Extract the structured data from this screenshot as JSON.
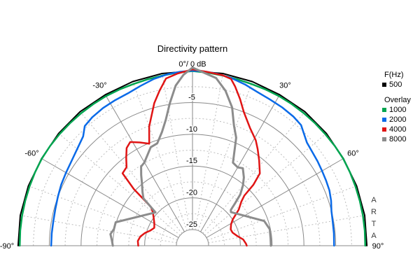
{
  "title": "Directivity pattern",
  "legend": {
    "primary_header": "F(Hz)",
    "primary_items": [
      {
        "label": "500",
        "color": "#000000"
      }
    ],
    "overlay_header": "Overlay",
    "overlay_items": [
      {
        "label": "1000",
        "color": "#00a550"
      },
      {
        "label": "2000",
        "color": "#0a6ae8"
      },
      {
        "label": "4000",
        "color": "#e01414"
      },
      {
        "label": "8000",
        "color": "#8c8c8c"
      }
    ]
  },
  "watermark": {
    "letters": [
      "A",
      "R",
      "T",
      "A"
    ]
  },
  "chart_data": {
    "type": "line",
    "subtype": "polar-directivity-half",
    "title": "Directivity pattern",
    "angle_axis": {
      "min": -90,
      "max": 90,
      "solid_spokes": [
        -60,
        -30,
        0,
        30,
        60
      ],
      "dashed_spokes": [
        -80,
        -70,
        -50,
        -40,
        -20,
        -10,
        10,
        20,
        40,
        50,
        70,
        80
      ],
      "labels": [
        {
          "angle": 0,
          "text": "0°/ 0 dB"
        },
        {
          "angle": -30,
          "text": "-30°"
        },
        {
          "angle": 30,
          "text": "30°"
        },
        {
          "angle": -60,
          "text": "-60°"
        },
        {
          "angle": 60,
          "text": "60°"
        },
        {
          "angle": -90,
          "text": "-90°"
        },
        {
          "angle": 90,
          "text": "90°"
        }
      ]
    },
    "radial_axis": {
      "unit": "dB",
      "max_db": 0,
      "min_db": -25,
      "solid_step_db": 5,
      "dashed_step_db": 2.5,
      "ticks": [
        {
          "db": -5,
          "text": "-5"
        },
        {
          "db": -10,
          "text": "-10"
        },
        {
          "db": -15,
          "text": "-15"
        },
        {
          "db": -20,
          "text": "-20"
        },
        {
          "db": -25,
          "text": "-25"
        }
      ]
    },
    "grid": {
      "solid_color": "#8a8a8a",
      "dashed_color": "#bdbdbd"
    },
    "series": [
      {
        "name": "500",
        "color": "#000000",
        "width": 2,
        "points": [
          [
            -90,
            -0.1
          ],
          [
            -80,
            -0.02
          ],
          [
            -70,
            -0.05
          ],
          [
            -60,
            -0.12
          ],
          [
            -50,
            -0.05
          ],
          [
            -40,
            -0.02
          ],
          [
            -30,
            -0.1
          ],
          [
            -20,
            -0.05
          ],
          [
            -10,
            -0.02
          ],
          [
            0,
            -0.05
          ],
          [
            10,
            -0.02
          ],
          [
            20,
            -0.05
          ],
          [
            30,
            -0.1
          ],
          [
            40,
            -0.02
          ],
          [
            50,
            -0.05
          ],
          [
            60,
            -0.12
          ],
          [
            70,
            -0.05
          ],
          [
            80,
            -0.02
          ],
          [
            90,
            -0.1
          ]
        ]
      },
      {
        "name": "1000",
        "color": "#00a550",
        "width": 2.5,
        "points": [
          [
            -90,
            -0.35
          ],
          [
            -85,
            -0.33
          ],
          [
            -80,
            -0.3
          ],
          [
            -75,
            -0.28
          ],
          [
            -70,
            -0.25
          ],
          [
            -65,
            -0.2
          ],
          [
            -60,
            -0.15
          ],
          [
            -55,
            -0.18
          ],
          [
            -50,
            -0.22
          ],
          [
            -45,
            -0.28
          ],
          [
            -40,
            -0.3
          ],
          [
            -35,
            -0.33
          ],
          [
            -30,
            -0.35
          ],
          [
            -25,
            -0.4
          ],
          [
            -20,
            -0.45
          ],
          [
            -15,
            -0.42
          ],
          [
            -10,
            -0.35
          ],
          [
            -5,
            -0.2
          ],
          [
            0,
            -0.05
          ],
          [
            5,
            -0.2
          ],
          [
            10,
            -0.35
          ],
          [
            15,
            -0.42
          ],
          [
            20,
            -0.45
          ],
          [
            25,
            -0.4
          ],
          [
            30,
            -0.35
          ],
          [
            35,
            -0.32
          ],
          [
            40,
            -0.3
          ],
          [
            45,
            -0.28
          ],
          [
            50,
            -0.25
          ],
          [
            55,
            -0.2
          ],
          [
            60,
            -0.15
          ],
          [
            65,
            -0.2
          ],
          [
            70,
            -0.25
          ],
          [
            75,
            -0.28
          ],
          [
            80,
            -0.3
          ],
          [
            85,
            -0.33
          ],
          [
            90,
            -0.35
          ]
        ]
      },
      {
        "name": "2000",
        "color": "#0a6ae8",
        "width": 2.5,
        "points": [
          [
            -90,
            -5.3
          ],
          [
            -85,
            -5.3
          ],
          [
            -80,
            -5.3
          ],
          [
            -75,
            -5.2
          ],
          [
            -70,
            -5.0
          ],
          [
            -65,
            -4.75
          ],
          [
            -60,
            -4.55
          ],
          [
            -55,
            -4.3
          ],
          [
            -50,
            -3.85
          ],
          [
            -45,
            -3.2
          ],
          [
            -42,
            -2.2
          ],
          [
            -38,
            -1.9
          ],
          [
            -33,
            -1.7
          ],
          [
            -28,
            -1.6
          ],
          [
            -23,
            -1.5
          ],
          [
            -18,
            -1.1
          ],
          [
            -13,
            -0.6
          ],
          [
            -8,
            -0.25
          ],
          [
            -4,
            -0.1
          ],
          [
            0,
            0
          ],
          [
            4,
            -0.05
          ],
          [
            8,
            -0.2
          ],
          [
            13,
            -0.45
          ],
          [
            18,
            -0.85
          ],
          [
            23,
            -1.3
          ],
          [
            28,
            -1.5
          ],
          [
            33,
            -1.6
          ],
          [
            38,
            -1.75
          ],
          [
            42,
            -2.0
          ],
          [
            45,
            -2.7
          ],
          [
            48,
            -3.3
          ],
          [
            52,
            -3.6
          ],
          [
            56,
            -3.8
          ],
          [
            60,
            -4.0
          ],
          [
            64,
            -4.15
          ],
          [
            68,
            -4.3
          ],
          [
            72,
            -4.6
          ],
          [
            76,
            -5.0
          ],
          [
            80,
            -5.15
          ],
          [
            85,
            -5.2
          ],
          [
            90,
            -5.25
          ]
        ]
      },
      {
        "name": "4000",
        "color": "#e01414",
        "width": 2.5,
        "points": [
          [
            -90,
            -19.0
          ],
          [
            -85,
            -18.9
          ],
          [
            -80,
            -19.2
          ],
          [
            -75,
            -19.8
          ],
          [
            -70,
            -20.5
          ],
          [
            -65,
            -20.9
          ],
          [
            -60,
            -20.6
          ],
          [
            -55,
            -20.1
          ],
          [
            -50,
            -19.4
          ],
          [
            -47,
            -18.6
          ],
          [
            -46,
            -14.7
          ],
          [
            -44,
            -11.7
          ],
          [
            -40,
            -11.4
          ],
          [
            -37,
            -10.2
          ],
          [
            -34,
            -9.0
          ],
          [
            -31,
            -8.5
          ],
          [
            -27,
            -9.3
          ],
          [
            -23,
            -10.1
          ],
          [
            -20,
            -7.6
          ],
          [
            -15,
            -4.3
          ],
          [
            -12,
            -2.6
          ],
          [
            -9,
            -0.9
          ],
          [
            -5,
            -0.35
          ],
          [
            0,
            0.2
          ],
          [
            5,
            -0.1
          ],
          [
            10,
            -0.3
          ],
          [
            13,
            -0.6
          ],
          [
            15,
            -1.6
          ],
          [
            18,
            -3.3
          ],
          [
            21,
            -5.0
          ],
          [
            26,
            -6.9
          ],
          [
            31,
            -8.2
          ],
          [
            34,
            -9.2
          ],
          [
            38,
            -10.5
          ],
          [
            43,
            -12.0
          ],
          [
            45,
            -14.0
          ],
          [
            46,
            -16.2
          ],
          [
            48,
            -17.2
          ],
          [
            52,
            -18.3
          ],
          [
            57,
            -20.0
          ],
          [
            61,
            -20.6
          ],
          [
            67,
            -21.0
          ],
          [
            72,
            -20.9
          ],
          [
            78,
            -20.3
          ],
          [
            83,
            -19.5
          ],
          [
            88,
            -19.1
          ],
          [
            90,
            -19.0
          ]
        ]
      },
      {
        "name": "8000",
        "color": "#8c8c8c",
        "width": 3,
        "points": [
          [
            -90,
            -15.0
          ],
          [
            -86,
            -14.8
          ],
          [
            -82,
            -14.5
          ],
          [
            -78,
            -14.9
          ],
          [
            -73,
            -14.9
          ],
          [
            -48,
            -19.7
          ],
          [
            -46,
            -16.8
          ],
          [
            -43,
            -16.0
          ],
          [
            -39,
            -14.9
          ],
          [
            -36,
            -13.8
          ],
          [
            -33,
            -12.7
          ],
          [
            -30,
            -12.4
          ],
          [
            -26,
            -11.5
          ],
          [
            -23,
            -10.7
          ],
          [
            -19,
            -10.5
          ],
          [
            -15,
            -9.0
          ],
          [
            -12,
            -7.3
          ],
          [
            -9,
            -4.8
          ],
          [
            -6,
            -2.2
          ],
          [
            -3,
            -0.6
          ],
          [
            0,
            0.5
          ],
          [
            4,
            -0.3
          ],
          [
            8,
            -0.9
          ],
          [
            12,
            -2.6
          ],
          [
            16,
            -4.9
          ],
          [
            19,
            -7.5
          ],
          [
            22,
            -9.2
          ],
          [
            26,
            -13.0
          ],
          [
            30,
            -13.3
          ],
          [
            33,
            -13.0
          ],
          [
            37,
            -14.1
          ],
          [
            40,
            -15.2
          ],
          [
            43,
            -16.5
          ],
          [
            45,
            -18.0
          ],
          [
            47,
            -19.3
          ],
          [
            49,
            -19.5
          ],
          [
            71,
            -15.6
          ],
          [
            78,
            -15.1
          ],
          [
            85,
            -15.2
          ],
          [
            90,
            -15.2
          ]
        ]
      }
    ]
  }
}
